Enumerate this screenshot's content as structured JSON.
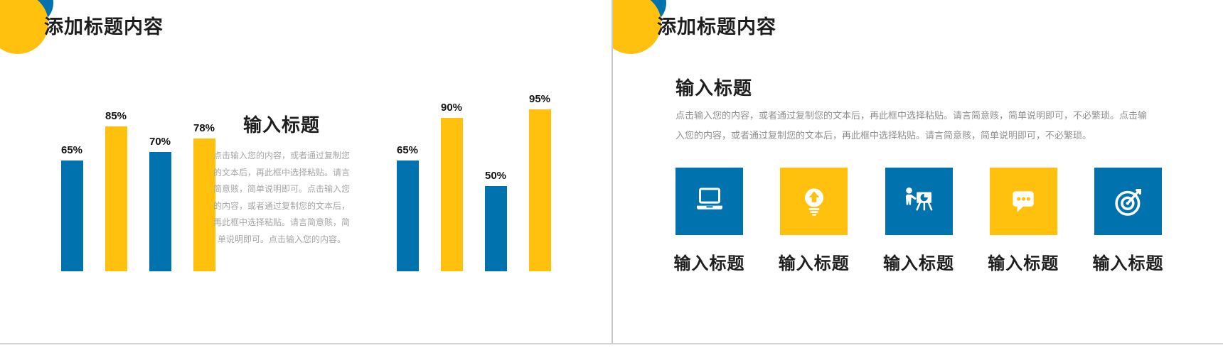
{
  "colors": {
    "blue": "#0072AE",
    "yellow": "#FFC10E",
    "title_text": "#1e1e1e",
    "muted_text_left": "#a6a6a6",
    "muted_text_right": "#8f8f8f",
    "divider": "#c9c9c9"
  },
  "slide_left": {
    "title": "添加标题内容",
    "decoration": [
      "blue-circle",
      "yellow-circle"
    ],
    "text_block": {
      "title": "输入标题",
      "body": "点击输入您的内容，或者通过复制您的文本后，再此框中选择粘贴。请言简意赅，简单说明即可。点击输入您的内容，或者通过复制您的文本后，再此框中选择粘贴。请言简意赅，简单说明即可。点击输入您的内容。"
    }
  },
  "slide_right": {
    "title": "添加标题内容",
    "decoration": [
      "blue-circle",
      "yellow-circle"
    ],
    "section": {
      "title": "输入标题",
      "body": "点击输入您的内容，或者通过复制您的文本后，再此框中选择粘贴。请言简意赅，简单说明即可，不必繁琐。点击输入您的内容，或者通过复制您的文本后，再此框中选择粘贴。请言简意赅，简单说明即可，不必繁琐。"
    },
    "features": [
      {
        "icon": "laptop-icon",
        "color": "#0072AE",
        "label": "输入标题"
      },
      {
        "icon": "lightbulb-icon",
        "color": "#FFC10E",
        "label": "输入标题"
      },
      {
        "icon": "presentation-icon",
        "color": "#0072AE",
        "label": "输入标题"
      },
      {
        "icon": "chat-bubble-icon",
        "color": "#FFC10E",
        "label": "输入标题"
      },
      {
        "icon": "target-icon",
        "color": "#0072AE",
        "label": "输入标题"
      }
    ]
  },
  "chart_data": [
    {
      "type": "bar",
      "values": [
        65,
        85,
        70,
        78
      ],
      "value_labels": [
        "65%",
        "85%",
        "70%",
        "78%"
      ],
      "bar_colors": [
        "#0072AE",
        "#FFC10E",
        "#0072AE",
        "#FFC10E"
      ],
      "ylim": [
        0,
        100
      ],
      "grid": false,
      "axes_shown": false,
      "value_labels_position": "above-bar"
    },
    {
      "type": "bar",
      "values": [
        65,
        90,
        50,
        95
      ],
      "value_labels": [
        "65%",
        "90%",
        "50%",
        "95%"
      ],
      "bar_colors": [
        "#0072AE",
        "#FFC10E",
        "#0072AE",
        "#FFC10E"
      ],
      "ylim": [
        0,
        100
      ],
      "grid": false,
      "axes_shown": false,
      "value_labels_position": "above-bar"
    }
  ]
}
